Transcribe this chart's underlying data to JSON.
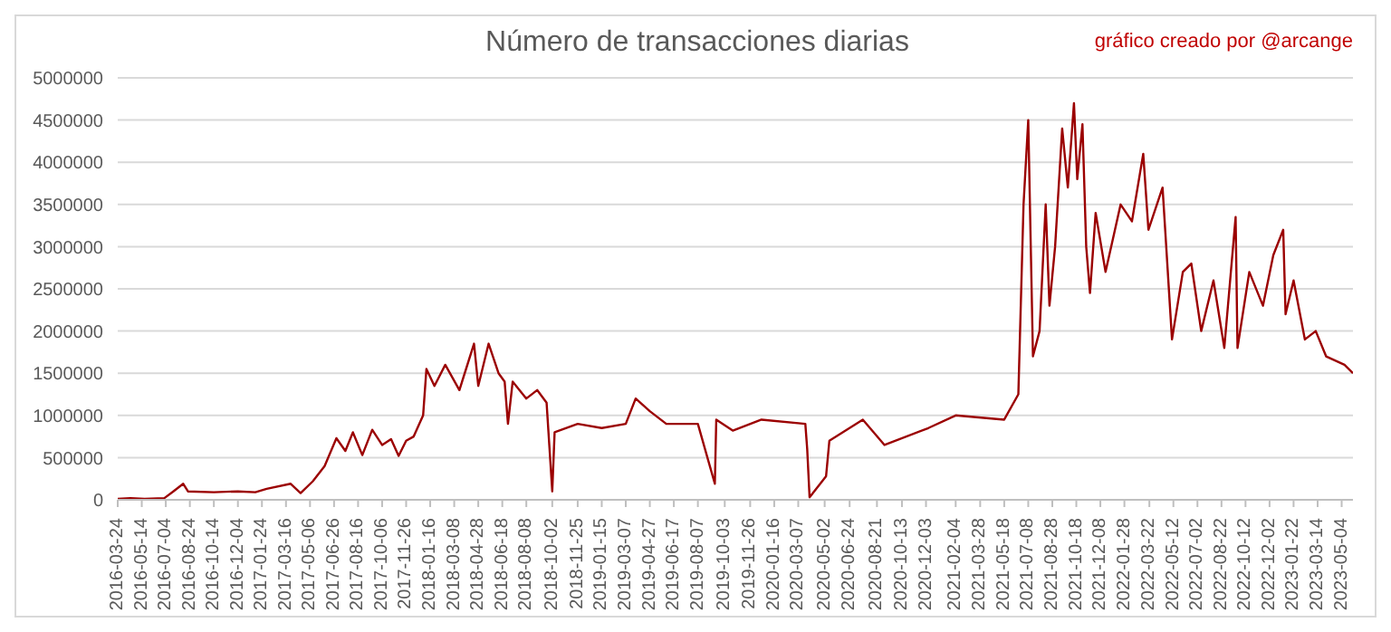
{
  "chart_data": {
    "type": "line",
    "title": "Número de transacciones diarias",
    "annotations": [
      "gráfico creado por @arcange"
    ],
    "x": [
      "2016-03-24",
      "2016-04-20",
      "2016-05-20",
      "2016-07-01",
      "2016-07-20",
      "2016-08-10",
      "2016-08-20",
      "2016-10-14",
      "2016-12-04",
      "2017-01-10",
      "2017-02-03",
      "2017-03-26",
      "2017-04-16",
      "2017-05-12",
      "2017-06-06",
      "2017-07-01",
      "2017-07-20",
      "2017-08-05",
      "2017-08-25",
      "2017-09-15",
      "2017-10-06",
      "2017-10-25",
      "2017-11-10",
      "2017-11-26",
      "2017-12-12",
      "2018-01-01",
      "2018-01-08",
      "2018-01-25",
      "2018-02-17",
      "2018-03-19",
      "2018-04-19",
      "2018-04-28",
      "2018-05-20",
      "2018-06-10",
      "2018-06-23",
      "2018-06-30",
      "2018-07-10",
      "2018-08-08",
      "2018-08-31",
      "2018-09-20",
      "2018-10-02",
      "2018-10-07",
      "2018-11-25",
      "2019-01-15",
      "2019-03-07",
      "2019-03-28",
      "2019-04-27",
      "2019-06-01",
      "2019-08-07",
      "2019-09-12",
      "2019-09-15",
      "2019-10-20",
      "2019-12-20",
      "2020-03-22",
      "2020-03-26",
      "2020-03-31",
      "2020-05-05",
      "2020-05-12",
      "2020-07-22",
      "2020-09-06",
      "2020-12-08",
      "2021-02-04",
      "2021-05-18",
      "2021-06-17",
      "2021-06-28",
      "2021-07-08",
      "2021-07-18",
      "2021-08-01",
      "2021-08-14",
      "2021-08-22",
      "2021-09-03",
      "2021-09-18",
      "2021-09-30",
      "2021-10-13",
      "2021-10-20",
      "2021-10-31",
      "2021-11-08",
      "2021-11-16",
      "2021-11-28",
      "2021-12-19",
      "2022-01-20",
      "2022-02-13",
      "2022-03-09",
      "2022-03-20",
      "2022-04-19",
      "2022-05-09",
      "2022-06-01",
      "2022-06-19",
      "2022-07-10",
      "2022-08-05",
      "2022-08-28",
      "2022-09-21",
      "2022-09-25",
      "2022-10-20",
      "2022-11-18",
      "2022-12-10",
      "2022-12-31",
      "2023-01-05",
      "2023-01-22",
      "2023-02-15",
      "2023-03-10",
      "2023-04-01",
      "2023-05-10",
      "2023-05-28"
    ],
    "series": [
      {
        "color": "#9b0000",
        "values": [
          10000,
          20000,
          10000,
          20000,
          100000,
          190000,
          100000,
          90000,
          100000,
          90000,
          130000,
          190000,
          80000,
          220000,
          400000,
          730000,
          580000,
          800000,
          530000,
          830000,
          650000,
          720000,
          520000,
          700000,
          750000,
          1000000,
          1550000,
          1350000,
          1600000,
          1300000,
          1850000,
          1350000,
          1850000,
          1500000,
          1400000,
          900000,
          1400000,
          1200000,
          1300000,
          1150000,
          100000,
          800000,
          900000,
          850000,
          900000,
          1200000,
          1050000,
          900000,
          900000,
          190000,
          950000,
          820000,
          950000,
          900000,
          600000,
          30000,
          280000,
          700000,
          950000,
          650000,
          850000,
          1000000,
          950000,
          1250000,
          3500000,
          4500000,
          1700000,
          2000000,
          3500000,
          2300000,
          3000000,
          4400000,
          3700000,
          4700000,
          3800000,
          4450000,
          3000000,
          2450000,
          3400000,
          2700000,
          3500000,
          3300000,
          4100000,
          3200000,
          3700000,
          1900000,
          2700000,
          2800000,
          2000000,
          2600000,
          1800000,
          3350000,
          1800000,
          2700000,
          2300000,
          2900000,
          3200000,
          2200000,
          2600000,
          1900000,
          2000000,
          1700000,
          1600000,
          1500000
        ]
      }
    ],
    "xlim": [
      "2016-03-24",
      "2023-05-28"
    ],
    "xticks": [
      "2016-03-24",
      "2016-05-14",
      "2016-07-04",
      "2016-08-24",
      "2016-10-14",
      "2016-12-04",
      "2017-01-24",
      "2017-03-16",
      "2017-05-06",
      "2017-06-26",
      "2017-08-16",
      "2017-10-06",
      "2017-11-26",
      "2018-01-16",
      "2018-03-08",
      "2018-04-28",
      "2018-06-18",
      "2018-08-08",
      "2018-10-02",
      "2018-11-25",
      "2019-01-15",
      "2019-03-07",
      "2019-04-27",
      "2019-06-17",
      "2019-08-07",
      "2019-10-03",
      "2019-11-26",
      "2020-01-16",
      "2020-03-07",
      "2020-05-02",
      "2020-06-24",
      "2020-08-21",
      "2020-10-13",
      "2020-12-03",
      "2021-02-04",
      "2021-03-28",
      "2021-05-18",
      "2021-07-08",
      "2021-08-28",
      "2021-10-18",
      "2021-12-08",
      "2022-01-28",
      "2022-03-22",
      "2022-05-12",
      "2022-07-02",
      "2022-08-22",
      "2022-10-12",
      "2022-12-02",
      "2023-01-22",
      "2023-03-14",
      "2023-05-04"
    ],
    "ylim": [
      0,
      5000000
    ],
    "yticks": [
      0,
      500000,
      1000000,
      1500000,
      2000000,
      2500000,
      3000000,
      3500000,
      4000000,
      4500000,
      5000000
    ],
    "grid": "y",
    "legend": false,
    "marker": "none",
    "line_style": "solid"
  }
}
